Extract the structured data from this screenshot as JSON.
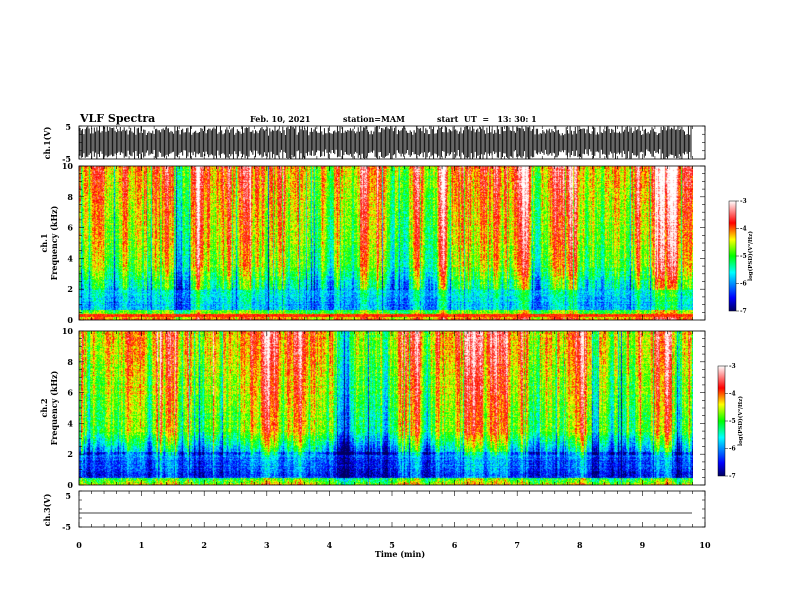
{
  "header": {
    "title": "VLF Spectra",
    "date": "Feb. 10, 2021",
    "station": "station=MAM",
    "start": "start  UT  =   13: 30: 1"
  },
  "chart_data": [
    {
      "type": "line",
      "name": "ch1-waveform",
      "ylabel": "ch.1(V)",
      "ylim": [
        -5,
        5
      ],
      "yticks": [
        "5",
        "-5"
      ],
      "xlim": [
        0,
        10
      ]
    },
    {
      "type": "heatmap",
      "name": "ch1-spectrogram",
      "ylabel_line1": "ch.1",
      "ylabel_line2": "Frequency (kHz)",
      "ylim": [
        0,
        10
      ],
      "yticks": [
        "0",
        "2",
        "4",
        "6",
        "8",
        "10"
      ],
      "xlim": [
        0,
        9.85
      ],
      "colorbar": {
        "label": "log(PSD)(V²/Hz)",
        "range": [
          -7,
          -3
        ],
        "ticks": [
          "-3",
          "-4",
          "-5",
          "-6",
          "-7"
        ]
      }
    },
    {
      "type": "heatmap",
      "name": "ch2-spectrogram",
      "ylabel_line1": "ch.2",
      "ylabel_line2": "Frequency (kHz)",
      "ylim": [
        0,
        10
      ],
      "yticks": [
        "0",
        "2",
        "4",
        "6",
        "8",
        "10"
      ],
      "xlim": [
        0,
        9.85
      ],
      "colorbar": {
        "label": "log(PSD)(V²/Hz)",
        "range": [
          -7,
          -3
        ],
        "ticks": [
          "-3",
          "-4",
          "-5",
          "-6",
          "-7"
        ]
      }
    },
    {
      "type": "line",
      "name": "ch3-waveform",
      "ylabel": "ch.3(V)",
      "ylim": [
        -5,
        5
      ],
      "yticks": [
        "5",
        "-5"
      ],
      "xlim": [
        0,
        10
      ]
    }
  ],
  "xaxis": {
    "label": "Time (min)",
    "ticks": [
      "0",
      "1",
      "2",
      "3",
      "4",
      "5",
      "6",
      "7",
      "8",
      "9",
      "10"
    ]
  },
  "colors": {
    "spectrum": [
      "#000080",
      "#0000ff",
      "#00ffff",
      "#00ff00",
      "#ffff00",
      "#ff0000",
      "#ffffff"
    ]
  }
}
